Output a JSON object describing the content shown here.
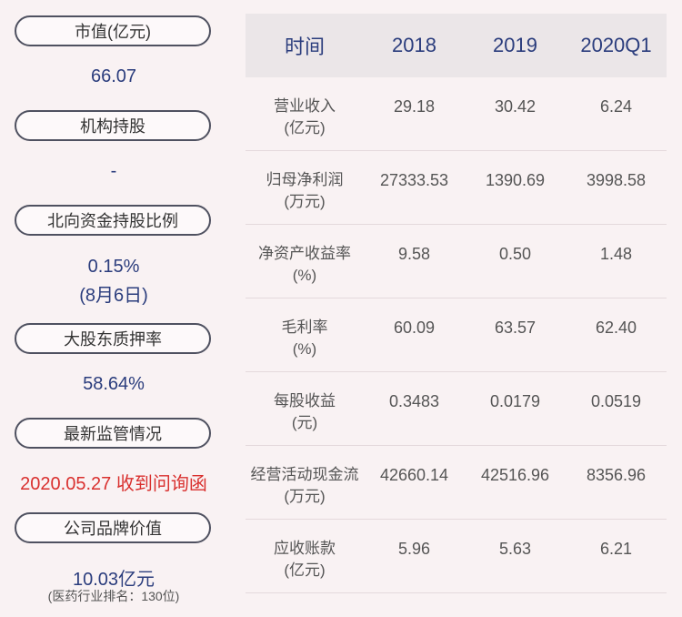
{
  "left_panel": {
    "market_value_label": "市值(亿元)",
    "market_value": "66.07",
    "institution_label": "机构持股",
    "institution_value": "-",
    "northbound_label": "北向资金持股比例",
    "northbound_value": "0.15%",
    "northbound_date": "(8月6日)",
    "pledge_label": "大股东质押率",
    "pledge_value": "58.64%",
    "regulation_label": "最新监管情况",
    "regulation_value": "2020.05.27 收到问询函",
    "brand_label": "公司品牌价值",
    "brand_value": "10.03亿元",
    "brand_rank": "(医药行业排名：130位)"
  },
  "table": {
    "headers": [
      "时间",
      "2018",
      "2019",
      "2020Q1"
    ],
    "rows": [
      {
        "label1": "营业收入",
        "label2": "(亿元)",
        "v2018": "29.18",
        "v2019": "30.42",
        "v2020q1": "6.24"
      },
      {
        "label1": "归母净利润",
        "label2": "(万元)",
        "v2018": "27333.53",
        "v2019": "1390.69",
        "v2020q1": "3998.58"
      },
      {
        "label1": "净资产收益率",
        "label2": "(%)",
        "v2018": "9.58",
        "v2019": "0.50",
        "v2020q1": "1.48"
      },
      {
        "label1": "毛利率",
        "label2": "(%)",
        "v2018": "60.09",
        "v2019": "63.57",
        "v2020q1": "62.40"
      },
      {
        "label1": "每股收益",
        "label2": "(元)",
        "v2018": "0.3483",
        "v2019": "0.0179",
        "v2020q1": "0.0519"
      },
      {
        "label1": "经营活动现金流",
        "label2": "(万元)",
        "v2018": "42660.14",
        "v2019": "42516.96",
        "v2020q1": "8356.96"
      },
      {
        "label1": "应收账款",
        "label2": "(亿元)",
        "v2018": "5.96",
        "v2019": "5.63",
        "v2020q1": "6.21"
      }
    ]
  }
}
